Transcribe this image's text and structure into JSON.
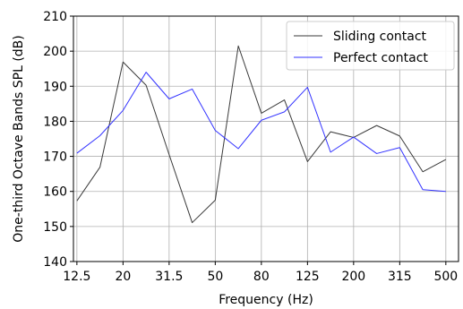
{
  "chart_data": {
    "type": "line",
    "xlabel": "Frequency (Hz)",
    "ylabel": "One-third Octave Bands SPL (dB)",
    "ylim": [
      140,
      210
    ],
    "y_ticks": [
      140,
      150,
      160,
      170,
      180,
      190,
      200,
      210
    ],
    "x_ticks": [
      "12.5",
      "20",
      "31.5",
      "50",
      "80",
      "125",
      "200",
      "315",
      "500"
    ],
    "categories": [
      "12.5",
      "16",
      "20",
      "25",
      "31.5",
      "40",
      "50",
      "63",
      "80",
      "100",
      "125",
      "160",
      "200",
      "250",
      "315",
      "400",
      "500"
    ],
    "grid": true,
    "legend_position": "top-right",
    "series": [
      {
        "name": "Sliding contact",
        "color": "#3a3a3a",
        "values": [
          157.3,
          166.9,
          196.9,
          190.3,
          170.5,
          151.1,
          157.5,
          201.5,
          182.3,
          186.1,
          168.5,
          177.0,
          175.4,
          178.8,
          175.8,
          165.6,
          169.1
        ]
      },
      {
        "name": "Perfect contact",
        "color": "#3333ff",
        "values": [
          170.9,
          175.9,
          183.1,
          194.0,
          186.4,
          189.2,
          177.4,
          172.2,
          180.3,
          182.7,
          189.7,
          171.2,
          175.5,
          170.8,
          172.5,
          160.5,
          160.0
        ]
      }
    ]
  }
}
